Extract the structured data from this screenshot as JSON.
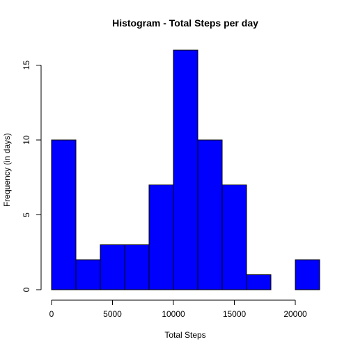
{
  "chart_data": {
    "type": "bar",
    "title": "Histogram - Total Steps per day",
    "xlabel": "Total Steps",
    "ylabel": "Frequency (in days)",
    "bar_color": "#0000ff",
    "bin_edges": [
      0,
      2000,
      4000,
      6000,
      8000,
      10000,
      12000,
      14000,
      16000,
      18000,
      20000,
      22000
    ],
    "values": [
      10,
      2,
      3,
      3,
      7,
      16,
      10,
      7,
      1,
      0,
      2
    ],
    "xlim": [
      0,
      22000
    ],
    "ylim": [
      0,
      16
    ],
    "x_ticks": [
      0,
      5000,
      10000,
      15000,
      20000
    ],
    "y_ticks": [
      0,
      5,
      10,
      15
    ],
    "x_tick_labels": [
      "0",
      "5000",
      "10000",
      "15000",
      "20000"
    ],
    "y_tick_labels": [
      "0",
      "5",
      "10",
      "15"
    ],
    "grid": false,
    "legend": "none"
  }
}
